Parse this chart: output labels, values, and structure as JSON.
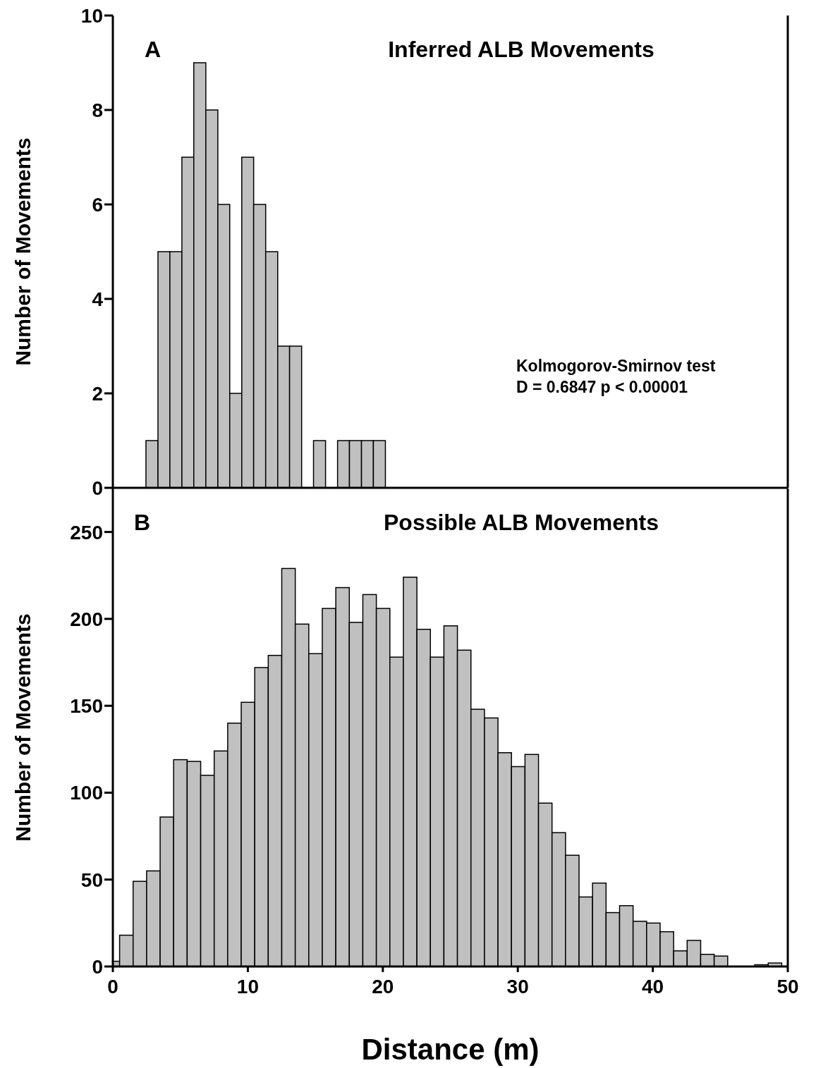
{
  "chart_data": [
    {
      "type": "histogram",
      "title": "Inferred ALB Movements",
      "ylabel": "Number of Movements",
      "annotations": [
        "A",
        "Kolmogorov-Smirnov test",
        "D = 0.6847 p < 0.00001"
      ],
      "bins": [
        2.45,
        3.34,
        4.22,
        5.11,
        5.99,
        6.88,
        7.77,
        8.65,
        9.54,
        10.42,
        11.31,
        12.2,
        13.08,
        13.97,
        14.85,
        15.74,
        16.63,
        17.51,
        18.4,
        19.28,
        20.17
      ],
      "values": [
        1,
        5,
        5,
        7,
        9,
        8,
        6,
        2,
        7,
        6,
        5,
        3,
        3,
        0,
        1,
        0,
        1,
        1,
        1,
        1
      ],
      "color": "#c0c0c0",
      "xlim": [
        0,
        50
      ],
      "ylim": [
        0,
        10
      ],
      "yticks": [
        0,
        2,
        4,
        6,
        8,
        10
      ],
      "tick_labels": "y"
    },
    {
      "type": "histogram",
      "title": "Possible ALB Movements",
      "xlabel": "Distance (m)",
      "ylabel": "Number of Movements",
      "annotations": [
        "B"
      ],
      "bins": [
        0,
        0.5,
        1.5,
        2.5,
        3.5,
        4.5,
        5.5,
        6.5,
        7.5,
        8.5,
        9.5,
        10.5,
        11.5,
        12.5,
        13.5,
        14.5,
        15.5,
        16.5,
        17.5,
        18.5,
        19.5,
        20.5,
        21.5,
        22.5,
        23.5,
        24.5,
        25.5,
        26.5,
        27.5,
        28.5,
        29.5,
        30.5,
        31.5,
        32.5,
        33.5,
        34.5,
        35.5,
        36.5,
        37.5,
        38.5,
        39.5,
        40.5,
        41.5,
        42.5,
        43.5,
        44.5,
        45.5,
        47.5,
        48.5,
        49.5
      ],
      "values": [
        3,
        18,
        49,
        55,
        86,
        119,
        118,
        110,
        124,
        140,
        152,
        172,
        179,
        229,
        197,
        180,
        206,
        218,
        198,
        214,
        206,
        178,
        224,
        194,
        178,
        196,
        182,
        148,
        143,
        123,
        115,
        122,
        94,
        77,
        64,
        40,
        48,
        31,
        35,
        26,
        25,
        20,
        9,
        15,
        7,
        6,
        0,
        1,
        2
      ],
      "color": "#c0c0c0",
      "xlim": [
        0,
        50
      ],
      "xticks": [
        0,
        10,
        20,
        30,
        40,
        50
      ],
      "ylim": [
        0,
        275
      ],
      "yticks": [
        0,
        50,
        100,
        150,
        200,
        250
      ]
    }
  ]
}
